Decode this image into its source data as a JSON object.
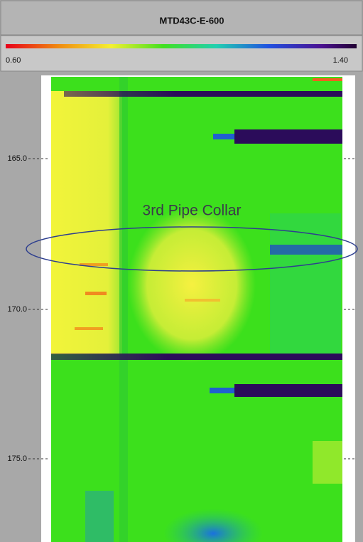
{
  "window": {
    "title": "MTD43C-E-600",
    "scale": {
      "min_label": "0.60",
      "max_label": "1.40"
    },
    "depth_ticks": [
      "165.0",
      "170.0",
      "175.0"
    ],
    "annotation": "3rd Pipe Collar"
  }
}
